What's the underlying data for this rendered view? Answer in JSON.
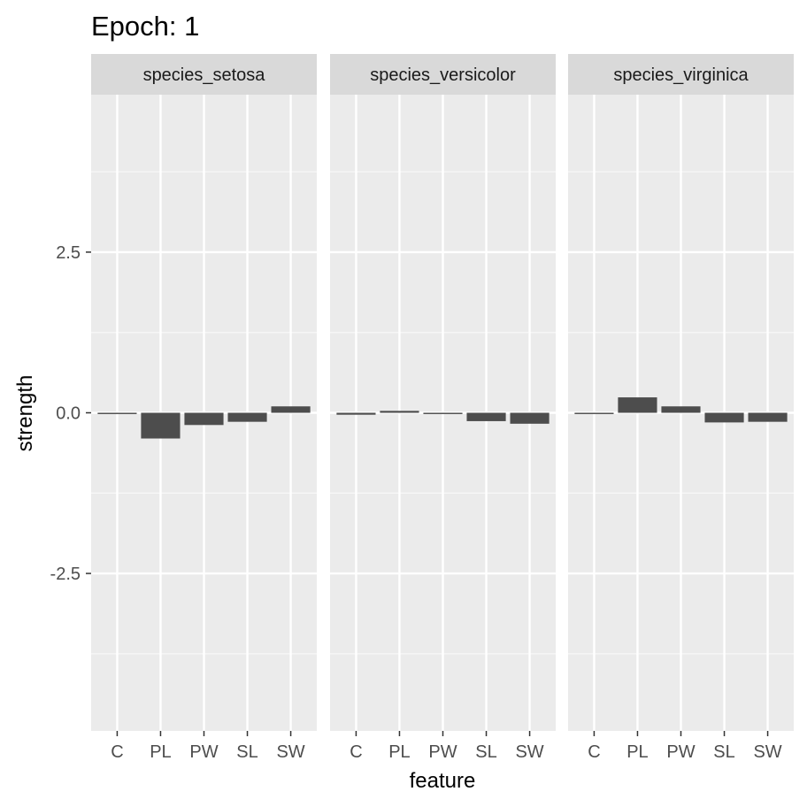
{
  "chart_data": {
    "type": "bar",
    "title": "Epoch: 1",
    "xlabel": "feature",
    "ylabel": "strength",
    "categories": [
      "C",
      "PL",
      "PW",
      "SL",
      "SW"
    ],
    "ylim": [
      -4.95,
      4.95
    ],
    "yticks": [
      -2.5,
      0.0,
      2.5
    ],
    "ytick_labels": [
      "-2.5",
      "0.0",
      "2.5"
    ],
    "grid": true,
    "legend": "none",
    "colors": {
      "bar": "#4d4d4d",
      "panel_background": "#ebebeb",
      "strip_background": "#d9d9d9",
      "grid_major": "#ffffff",
      "grid_minor": "#f7f7f7"
    },
    "facets": [
      {
        "name": "species_setosa",
        "values": [
          -0.02,
          -0.4,
          -0.19,
          -0.14,
          0.1
        ]
      },
      {
        "name": "species_versicolor",
        "values": [
          -0.03,
          0.03,
          -0.02,
          -0.13,
          -0.17
        ]
      },
      {
        "name": "species_virginica",
        "values": [
          -0.02,
          0.24,
          0.1,
          -0.15,
          -0.14
        ]
      }
    ]
  }
}
